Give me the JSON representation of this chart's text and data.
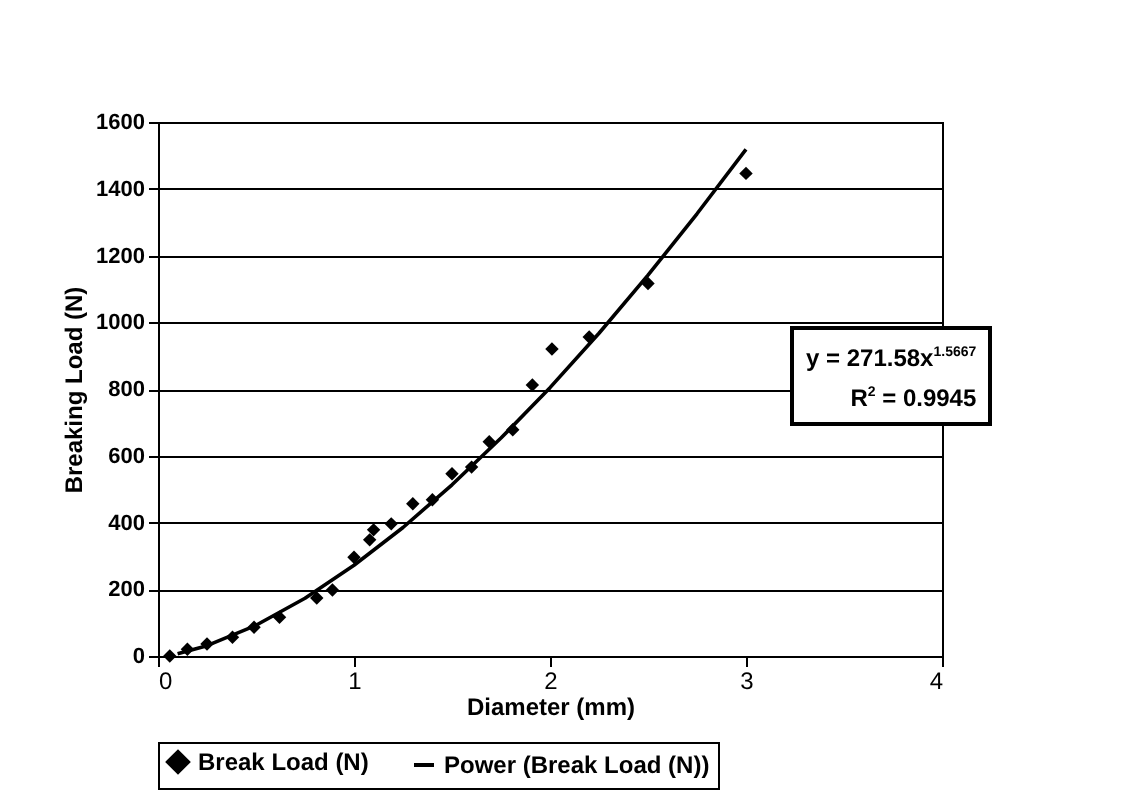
{
  "chart_data": {
    "type": "scatter",
    "xlabel": "Diameter (mm)",
    "ylabel": "Breaking Load (N)",
    "xlim": [
      0,
      4
    ],
    "xticks": [
      0,
      1,
      2,
      3,
      4
    ],
    "ylim": [
      0,
      1600
    ],
    "yticks": [
      0,
      200,
      400,
      600,
      800,
      1000,
      1200,
      1400,
      1600
    ],
    "grid": "y",
    "legend": "bottom",
    "annotations": [
      "y = 271.58x$^{1.5667}$",
      "R$^{2}$ = 0.9945"
    ],
    "series": [
      {
        "name": "Break Load (N)",
        "marker": "diamond",
        "color": "#000000",
        "x": [
          0.06,
          0.15,
          0.25,
          0.38,
          0.49,
          0.62,
          0.81,
          0.89,
          1.0,
          1.08,
          1.1,
          1.19,
          1.3,
          1.4,
          1.5,
          1.6,
          1.69,
          1.81,
          1.91,
          2.01,
          2.2,
          2.5,
          3.0
        ],
        "values": [
          0,
          20,
          36,
          56,
          86,
          116,
          174,
          198,
          296,
          348,
          378,
          396,
          456,
          468,
          546,
          566,
          642,
          678,
          812,
          920,
          956,
          1116,
          1446
        ]
      },
      {
        "name": "Power (Break Load (N))",
        "type": "line",
        "color": "#000000",
        "x": [
          0.1,
          0.25,
          0.5,
          0.75,
          1,
          1.25,
          1.5,
          1.75,
          2,
          2.25,
          2.5,
          2.75,
          3
        ],
        "values": [
          7,
          31,
          92,
          173,
          272,
          385,
          513,
          653,
          804,
          967,
          1141,
          1325,
          1518
        ]
      }
    ]
  }
}
